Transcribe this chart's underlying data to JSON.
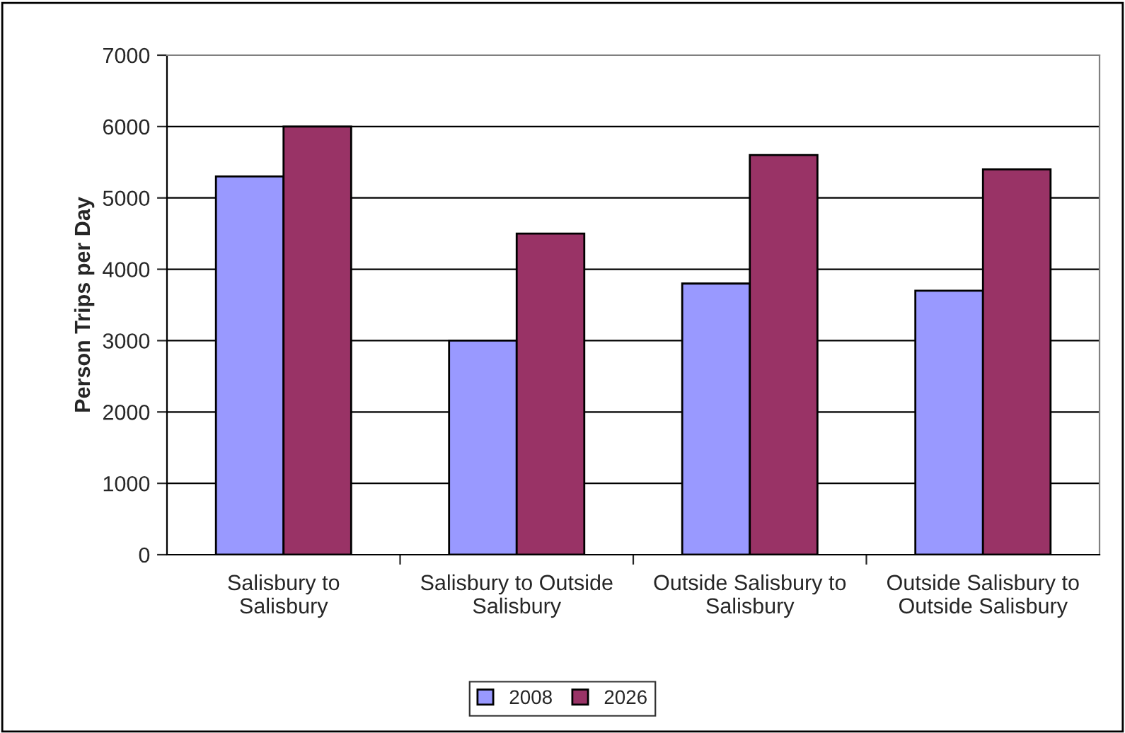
{
  "chart_data": {
    "type": "bar",
    "ylabel": "Person Trips per Day",
    "categories": [
      "Salisbury to\nSalisbury",
      "Salisbury to Outside\nSalisbury",
      "Outside Salisbury to\nSalisbury",
      "Outside Salisbury to\nOutside Salisbury"
    ],
    "series": [
      {
        "name": "2008",
        "color": "#9999ff",
        "values": [
          5300,
          3000,
          3800,
          3700
        ]
      },
      {
        "name": "2026",
        "color": "#993366",
        "values": [
          6000,
          4500,
          5600,
          5400
        ]
      }
    ],
    "ylim": [
      0,
      7000
    ],
    "yticks": [
      0,
      1000,
      2000,
      3000,
      4000,
      5000,
      6000,
      7000
    ],
    "grid": "y",
    "legend": "bottom"
  }
}
